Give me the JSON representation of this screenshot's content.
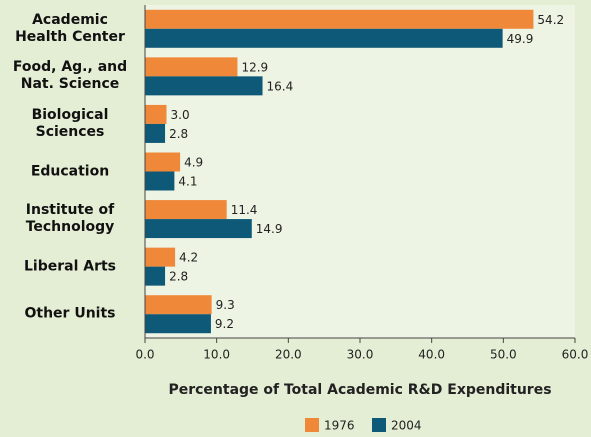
{
  "chart_data": {
    "type": "bar",
    "orientation": "horizontal",
    "categories": [
      "Academic\nHealth Center",
      "Food, Ag., and\nNat. Science",
      "Biological\nSciences",
      "Education",
      "Institute of\nTechnology",
      "Liberal Arts",
      "Other Units"
    ],
    "series": [
      {
        "name": "1976",
        "color": "#f0883a",
        "values": [
          54.2,
          12.9,
          3.0,
          4.9,
          11.4,
          4.2,
          9.3
        ],
        "value_labels": [
          "54.2",
          "12.9",
          "3.0",
          "4.9",
          "11.4",
          "4.2",
          "9.3"
        ]
      },
      {
        "name": "2004",
        "color": "#0e5878",
        "values": [
          49.9,
          16.4,
          2.8,
          4.1,
          14.9,
          2.8,
          9.2
        ],
        "value_labels": [
          "49.9",
          "16.4",
          "2.8",
          "4.1",
          "14.9",
          "2.8",
          "9.2"
        ]
      }
    ],
    "xlabel": "Percentage of Total Academic R&D Expenditures",
    "xlim": [
      0,
      60
    ],
    "xticks": [
      {
        "value": 0,
        "label": "0.0"
      },
      {
        "value": 10,
        "label": "10.0"
      },
      {
        "value": 20,
        "label": "20.0"
      },
      {
        "value": 30,
        "label": "30.0"
      },
      {
        "value": 40,
        "label": "40.0"
      },
      {
        "value": 50,
        "label": "50.0"
      },
      {
        "value": 60,
        "label": "60.0"
      }
    ],
    "legend": "bottom"
  }
}
